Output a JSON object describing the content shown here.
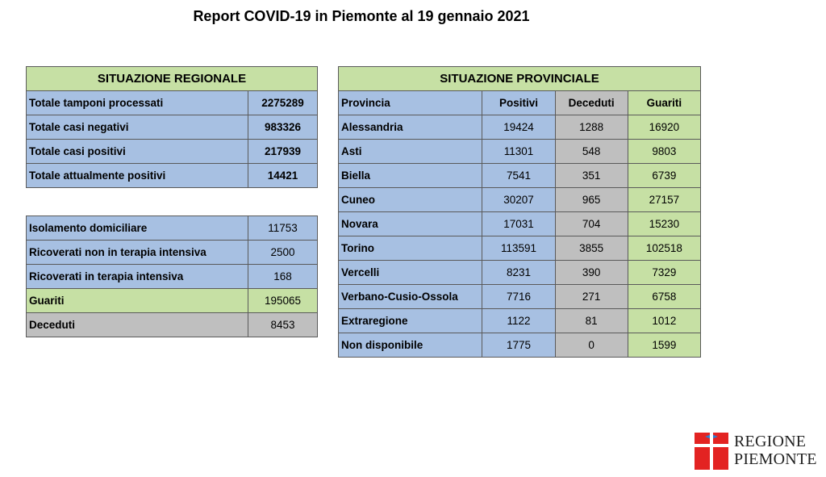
{
  "title": "Report COVID-19 in Piemonte al 19 gennaio 2021",
  "regional": {
    "header": "SITUAZIONE REGIONALE",
    "rows": [
      {
        "label": "Totale tamponi processati",
        "value": "2275289"
      },
      {
        "label": "Totale casi negativi",
        "value": "983326"
      },
      {
        "label": "Totale casi positivi",
        "value": "217939"
      },
      {
        "label": "Totale attualmente positivi",
        "value": "14421"
      }
    ]
  },
  "status": {
    "rows": [
      {
        "label": "Isolamento domiciliare",
        "value": "11753"
      },
      {
        "label": "Ricoverati non in terapia intensiva",
        "value": "2500"
      },
      {
        "label": "Ricoverati in terapia intensiva",
        "value": "168"
      },
      {
        "label": "Guariti",
        "value": "195065"
      },
      {
        "label": "Deceduti",
        "value": "8453"
      }
    ]
  },
  "provincial": {
    "header": "SITUAZIONE PROVINCIALE",
    "columns": [
      "Provincia",
      "Positivi",
      "Deceduti",
      "Guariti"
    ],
    "rows": [
      {
        "name": "Alessandria",
        "positivi": "19424",
        "deceduti": "1288",
        "guariti": "16920"
      },
      {
        "name": "Asti",
        "positivi": "11301",
        "deceduti": "548",
        "guariti": "9803"
      },
      {
        "name": "Biella",
        "positivi": "7541",
        "deceduti": "351",
        "guariti": "6739"
      },
      {
        "name": "Cuneo",
        "positivi": "30207",
        "deceduti": "965",
        "guariti": "27157"
      },
      {
        "name": "Novara",
        "positivi": "17031",
        "deceduti": "704",
        "guariti": "15230"
      },
      {
        "name": "Torino",
        "positivi": "113591",
        "deceduti": "3855",
        "guariti": "102518"
      },
      {
        "name": "Vercelli",
        "positivi": "8231",
        "deceduti": "390",
        "guariti": "7329"
      },
      {
        "name": "Verbano-Cusio-Ossola",
        "positivi": "7716",
        "deceduti": "271",
        "guariti": "6758"
      },
      {
        "name": "Extraregione",
        "positivi": "1122",
        "deceduti": "81",
        "guariti": "1012"
      },
      {
        "name": "Non disponibile",
        "positivi": "1775",
        "deceduti": "0",
        "guariti": "1599"
      }
    ]
  },
  "logo": {
    "line1": "REGIONE",
    "line2": "PIEMONTE",
    "icon": "regione-piemonte-emblem-icon"
  },
  "colors": {
    "blue": "#a7c0e2",
    "green": "#c6e0a4",
    "grey": "#bfbfbf",
    "logo_red": "#e32322"
  }
}
